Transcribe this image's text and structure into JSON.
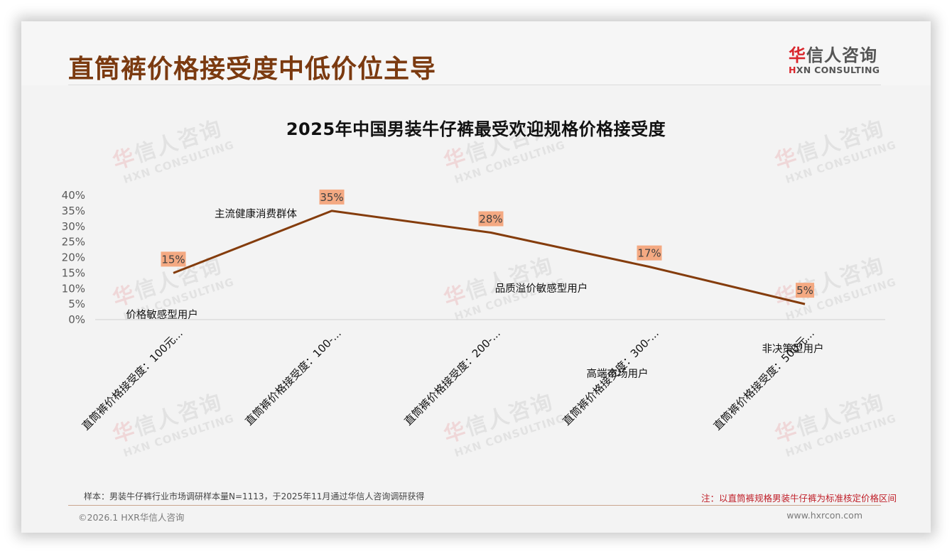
{
  "header": {
    "title": "直筒裤价格接受度中低价位主导",
    "logo": {
      "cn_accent": "华",
      "cn_rest": "信人咨询",
      "en_accent": "H",
      "en_rest": "XN CONSULTING"
    }
  },
  "watermark": {
    "cn_accent": "华",
    "cn_rest": "信人咨询",
    "en": "HXN CONSULTING"
  },
  "chart_data": {
    "type": "line",
    "title": "2025年中国男装牛仔裤最受欢迎规格价格接受度",
    "xlabel": "",
    "ylabel": "",
    "ylim": [
      0,
      40
    ],
    "yticks": [
      "0%",
      "5%",
      "10%",
      "15%",
      "20%",
      "25%",
      "30%",
      "35%",
      "40%"
    ],
    "grid": false,
    "legend": null,
    "categories": [
      "直筒裤价格接受度：100元...",
      "直筒裤价格接受度：100-...",
      "直筒裤价格接受度：200-...",
      "直筒裤价格接受度：300-...",
      "直筒裤价格接受度：500元..."
    ],
    "values": [
      15,
      35,
      28,
      17,
      5
    ],
    "data_labels": [
      "15%",
      "35%",
      "28%",
      "17%",
      "5%"
    ],
    "line_color": "#843c0c",
    "label_bg_color": "#f4a982",
    "annotations": [
      "价格敏感型用户",
      "主流健康消费群体",
      "品质溢价敏感型用户",
      "高端市场用户",
      "非决策型用户"
    ]
  },
  "footer": {
    "sample": "样本：男装牛仔裤行业市场调研样本量N=1113，于2025年11月通过华信人咨询调研获得",
    "note": "注：以直筒裤规格男装牛仔裤为标准核定价格区间",
    "copyright": "©2026.1 HXR华信人咨询",
    "url": "www.hxrcon.com"
  },
  "colors": {
    "title": "#7b3a10",
    "line": "#843c0c",
    "label_bg": "#f4a982",
    "note": "#c0202a",
    "brand_red": "#d9262c"
  }
}
